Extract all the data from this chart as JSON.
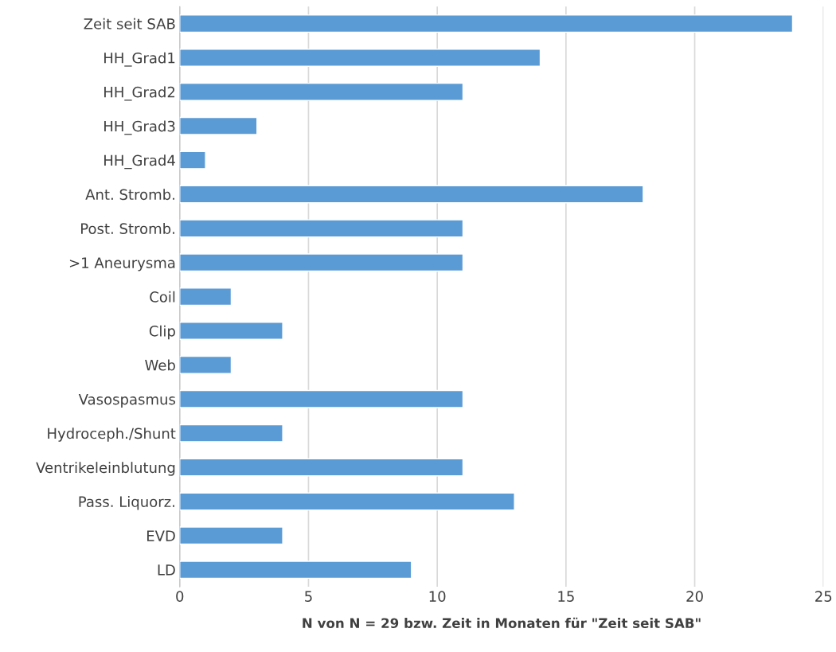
{
  "chart_data": {
    "type": "bar",
    "orientation": "horizontal",
    "xlabel": "N von N = 29 bzw. Zeit in Monaten für \"Zeit seit SAB\"",
    "categories": [
      "Zeit seit SAB",
      "HH_Grad1",
      "HH_Grad2",
      "HH_Grad3",
      "HH_Grad4",
      "Ant. Stromb.",
      "Post. Stromb.",
      ">1 Aneurysma",
      "Coil",
      "Clip",
      "Web",
      "Vasospasmus",
      "Hydroceph./Shunt",
      "Ventrikeleinblutung",
      "Pass. Liquorz.",
      "EVD",
      "LD"
    ],
    "values": [
      23.8,
      14,
      11,
      3,
      1,
      18,
      11,
      11,
      2,
      4,
      2,
      11,
      4,
      11,
      13,
      4,
      9
    ],
    "color": "#5b9bd5",
    "xlim": [
      0,
      25
    ],
    "xticks": [
      0,
      5,
      10,
      15,
      20,
      25
    ],
    "grid": "x"
  }
}
